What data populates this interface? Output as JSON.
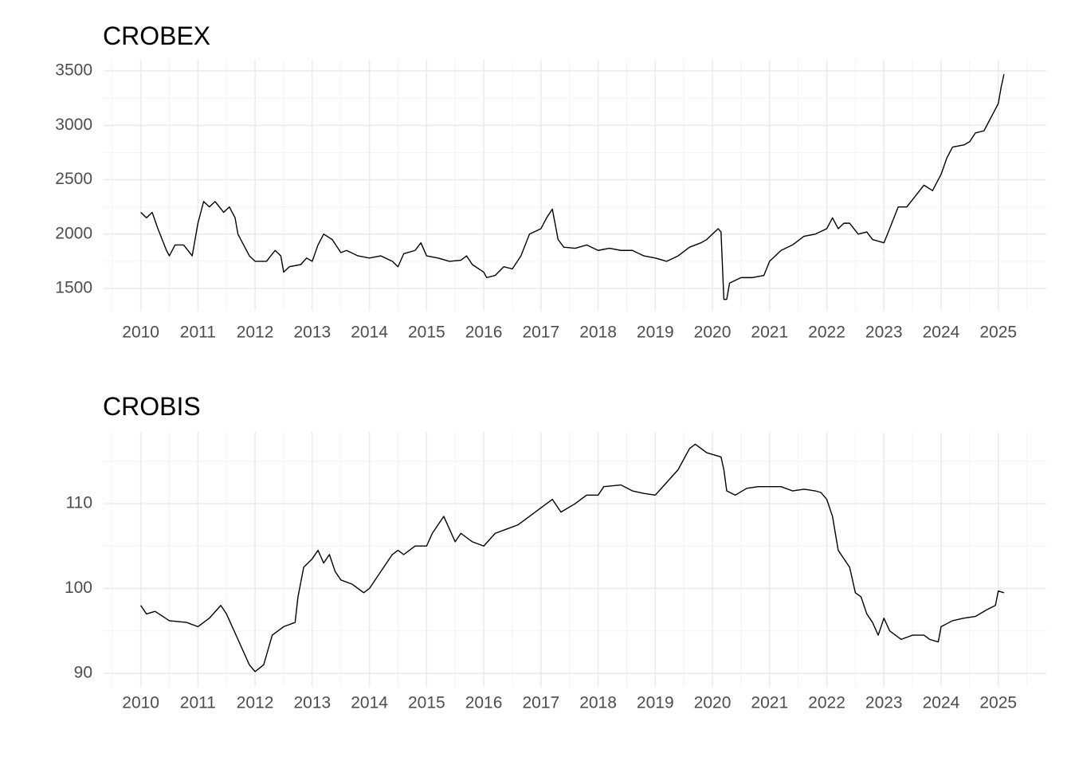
{
  "chart_data": [
    {
      "type": "line",
      "title": "CROBEX",
      "color": "#000000",
      "grid": true,
      "x": [
        2010.0,
        2010.1,
        2010.2,
        2010.3,
        2010.45,
        2010.5,
        2010.6,
        2010.75,
        2010.9,
        2011.0,
        2011.1,
        2011.2,
        2011.3,
        2011.45,
        2011.55,
        2011.65,
        2011.7,
        2011.8,
        2011.9,
        2012.0,
        2012.2,
        2012.35,
        2012.45,
        2012.5,
        2012.6,
        2012.8,
        2012.9,
        2013.0,
        2013.1,
        2013.2,
        2013.35,
        2013.5,
        2013.6,
        2013.8,
        2014.0,
        2014.2,
        2014.4,
        2014.5,
        2014.6,
        2014.8,
        2014.9,
        2015.0,
        2015.2,
        2015.4,
        2015.6,
        2015.7,
        2015.8,
        2016.0,
        2016.05,
        2016.2,
        2016.35,
        2016.5,
        2016.65,
        2016.8,
        2017.0,
        2017.1,
        2017.2,
        2017.3,
        2017.4,
        2017.6,
        2017.8,
        2018.0,
        2018.2,
        2018.4,
        2018.6,
        2018.8,
        2019.0,
        2019.2,
        2019.4,
        2019.6,
        2019.8,
        2019.9,
        2020.0,
        2020.1,
        2020.15,
        2020.2,
        2020.25,
        2020.3,
        2020.5,
        2020.7,
        2020.9,
        2021.0,
        2021.2,
        2021.4,
        2021.6,
        2021.8,
        2022.0,
        2022.1,
        2022.2,
        2022.3,
        2022.4,
        2022.55,
        2022.7,
        2022.8,
        2023.0,
        2023.1,
        2023.25,
        2023.4,
        2023.55,
        2023.7,
        2023.85,
        2024.0,
        2024.1,
        2024.2,
        2024.4,
        2024.5,
        2024.6,
        2024.75,
        2024.9,
        2025.0,
        2025.05,
        2025.1
      ],
      "values": [
        2200,
        2150,
        2200,
        2050,
        1850,
        1800,
        1900,
        1900,
        1800,
        2100,
        2300,
        2250,
        2300,
        2200,
        2250,
        2150,
        2000,
        1900,
        1800,
        1750,
        1750,
        1850,
        1800,
        1650,
        1700,
        1720,
        1780,
        1750,
        1900,
        2000,
        1950,
        1830,
        1850,
        1800,
        1780,
        1800,
        1750,
        1700,
        1820,
        1850,
        1920,
        1800,
        1780,
        1750,
        1760,
        1800,
        1720,
        1650,
        1600,
        1620,
        1700,
        1680,
        1800,
        2000,
        2050,
        2150,
        2230,
        1950,
        1880,
        1870,
        1900,
        1850,
        1870,
        1850,
        1850,
        1800,
        1780,
        1750,
        1800,
        1880,
        1920,
        1950,
        2000,
        2050,
        2020,
        1400,
        1400,
        1550,
        1600,
        1600,
        1620,
        1750,
        1850,
        1900,
        1980,
        2000,
        2050,
        2150,
        2050,
        2100,
        2100,
        2000,
        2020,
        1950,
        1920,
        2050,
        2250,
        2250,
        2350,
        2450,
        2400,
        2550,
        2700,
        2800,
        2820,
        2850,
        2930,
        2950,
        3100,
        3200,
        3350,
        3470
      ],
      "xlim": [
        2009.35,
        2025.84
      ],
      "xticks": [
        2010,
        2011,
        2012,
        2013,
        2014,
        2015,
        2016,
        2017,
        2018,
        2019,
        2020,
        2021,
        2022,
        2023,
        2024,
        2025
      ],
      "ylim": [
        1295,
        3603
      ],
      "yticks": [
        1500,
        2000,
        2500,
        3000,
        3500
      ]
    },
    {
      "type": "line",
      "title": "CROBIS",
      "color": "#000000",
      "grid": true,
      "x": [
        2010.0,
        2010.1,
        2010.25,
        2010.5,
        2010.8,
        2011.0,
        2011.2,
        2011.4,
        2011.5,
        2011.7,
        2011.9,
        2012.0,
        2012.15,
        2012.3,
        2012.5,
        2012.7,
        2012.75,
        2012.85,
        2013.0,
        2013.1,
        2013.2,
        2013.3,
        2013.4,
        2013.5,
        2013.7,
        2013.9,
        2014.0,
        2014.2,
        2014.4,
        2014.5,
        2014.6,
        2014.8,
        2015.0,
        2015.1,
        2015.3,
        2015.5,
        2015.6,
        2015.8,
        2016.0,
        2016.2,
        2016.4,
        2016.6,
        2016.8,
        2017.0,
        2017.2,
        2017.35,
        2017.6,
        2017.8,
        2018.0,
        2018.1,
        2018.4,
        2018.6,
        2018.8,
        2019.0,
        2019.2,
        2019.4,
        2019.6,
        2019.7,
        2019.9,
        2020.15,
        2020.2,
        2020.25,
        2020.4,
        2020.6,
        2020.8,
        2021.0,
        2021.2,
        2021.4,
        2021.6,
        2021.8,
        2021.9,
        2022.0,
        2022.1,
        2022.2,
        2022.4,
        2022.5,
        2022.6,
        2022.7,
        2022.8,
        2022.9,
        2023.0,
        2023.1,
        2023.3,
        2023.5,
        2023.7,
        2023.8,
        2023.95,
        2024.0,
        2024.2,
        2024.4,
        2024.6,
        2024.8,
        2024.95,
        2025.0,
        2025.1
      ],
      "values": [
        98,
        97,
        97.3,
        96.2,
        96,
        95.5,
        96.5,
        98,
        97,
        94,
        91,
        90.2,
        91,
        94.5,
        95.5,
        96,
        99,
        102.5,
        103.5,
        104.5,
        103,
        104,
        102,
        101,
        100.5,
        99.5,
        100,
        102,
        104,
        104.5,
        104,
        105,
        105,
        106.5,
        108.5,
        105.5,
        106.5,
        105.5,
        105,
        106.5,
        107,
        107.5,
        108.5,
        109.5,
        110.5,
        109,
        110,
        111,
        111,
        112,
        112.2,
        111.5,
        111.2,
        111,
        112.5,
        114,
        116.5,
        117,
        116,
        115.5,
        114,
        111.5,
        111,
        111.8,
        112,
        112,
        112,
        111.5,
        111.7,
        111.5,
        111.3,
        110.5,
        108.5,
        104.5,
        102.5,
        99.5,
        99,
        97,
        96,
        94.5,
        96.5,
        95,
        94,
        94.5,
        94.5,
        94,
        93.7,
        95.5,
        96.2,
        96.5,
        96.7,
        97.5,
        98,
        99.7,
        99.5
      ],
      "xlim": [
        2009.35,
        2025.84
      ],
      "xticks": [
        2010,
        2011,
        2012,
        2013,
        2014,
        2015,
        2016,
        2017,
        2018,
        2019,
        2020,
        2021,
        2022,
        2023,
        2024,
        2025
      ],
      "ylim": [
        88.4,
        118.45
      ],
      "yticks": [
        90,
        100,
        110
      ]
    }
  ]
}
